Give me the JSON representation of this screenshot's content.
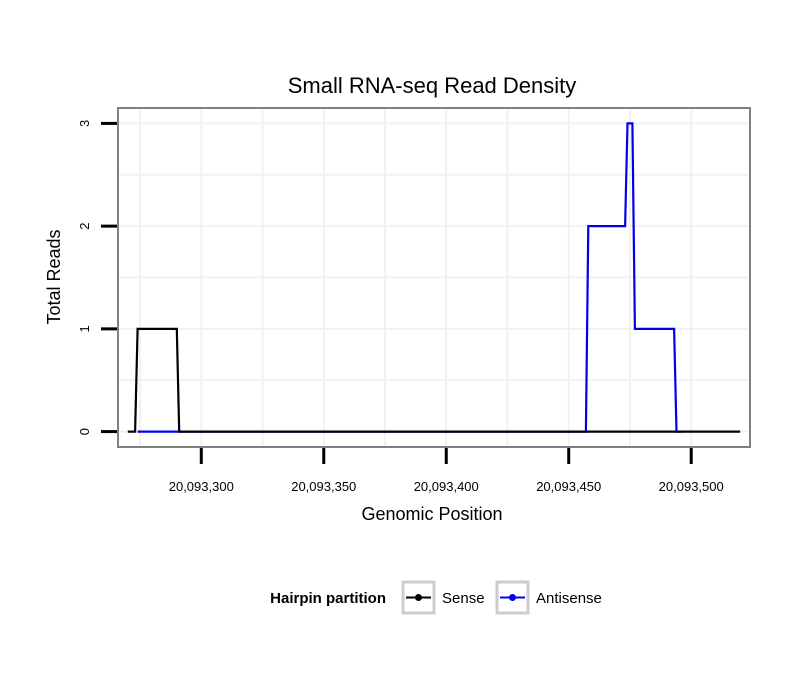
{
  "chart_data": {
    "type": "line",
    "title": "Small RNA-seq Read Density",
    "xlabel": "Genomic Position",
    "ylabel": "Total Reads",
    "xlim": [
      20093266,
      20093524
    ],
    "ylim": [
      -0.15,
      3.15
    ],
    "x_ticks": [
      20093300,
      20093350,
      20093400,
      20093450,
      20093500
    ],
    "x_tick_labels": [
      "20,093,300",
      "20,093,350",
      "20,093,400",
      "20,093,450",
      "20,093,500"
    ],
    "y_ticks": [
      0,
      1,
      2,
      3
    ],
    "y_tick_labels": [
      "0",
      "1",
      "2",
      "3"
    ],
    "grid": true,
    "legend": {
      "title": "Hairpin partition",
      "position": "bottom"
    },
    "series": [
      {
        "name": "Sense",
        "color": "#000000",
        "x": [
          20093270,
          20093273,
          20093274,
          20093290,
          20093291,
          20093520
        ],
        "y": [
          0,
          0,
          1,
          1,
          0,
          0
        ]
      },
      {
        "name": "Antisense",
        "color": "#0000ee",
        "x": [
          20093274,
          20093290,
          20093291,
          20093457,
          20093458,
          20093473,
          20093474,
          20093476,
          20093477,
          20093493,
          20093494,
          20093496
        ],
        "y": [
          0,
          0,
          0,
          0,
          2,
          2,
          3,
          3,
          1,
          1,
          0,
          0
        ]
      }
    ]
  }
}
